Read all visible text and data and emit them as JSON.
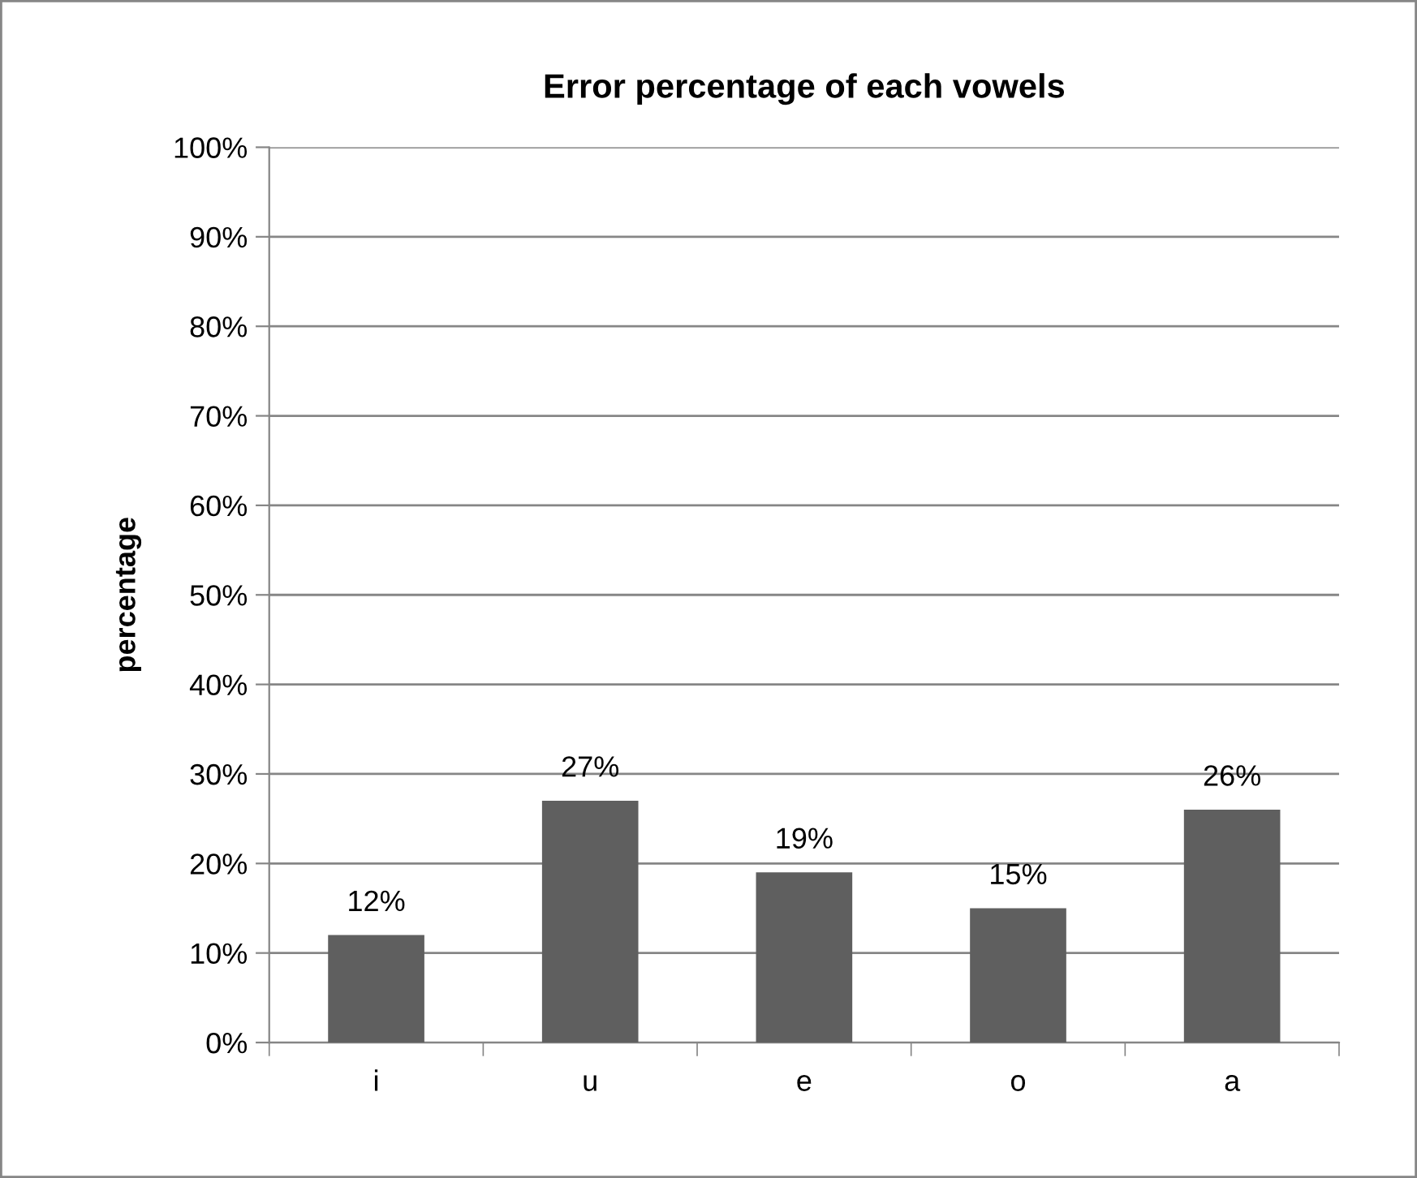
{
  "chart_data": {
    "type": "bar",
    "title": "Error percentage of each vowels",
    "ylabel": "percentage",
    "categories": [
      "i",
      "u",
      "e",
      "o",
      "a"
    ],
    "values": [
      12,
      27,
      19,
      15,
      26
    ],
    "value_labels": [
      "12%",
      "27%",
      "19%",
      "15%",
      "26%"
    ],
    "color": "#5f5f5f",
    "ylim": [
      0,
      100
    ],
    "yticks": [
      {
        "value": 0,
        "label": "0%"
      },
      {
        "value": 10,
        "label": "10%"
      },
      {
        "value": 20,
        "label": "20%"
      },
      {
        "value": 30,
        "label": "30%"
      },
      {
        "value": 40,
        "label": "40%"
      },
      {
        "value": 50,
        "label": "50%"
      },
      {
        "value": 60,
        "label": "60%"
      },
      {
        "value": 70,
        "label": "70%"
      },
      {
        "value": 80,
        "label": "80%"
      },
      {
        "value": 90,
        "label": "90%"
      },
      {
        "value": 100,
        "label": "100%"
      }
    ],
    "grid": "y"
  }
}
